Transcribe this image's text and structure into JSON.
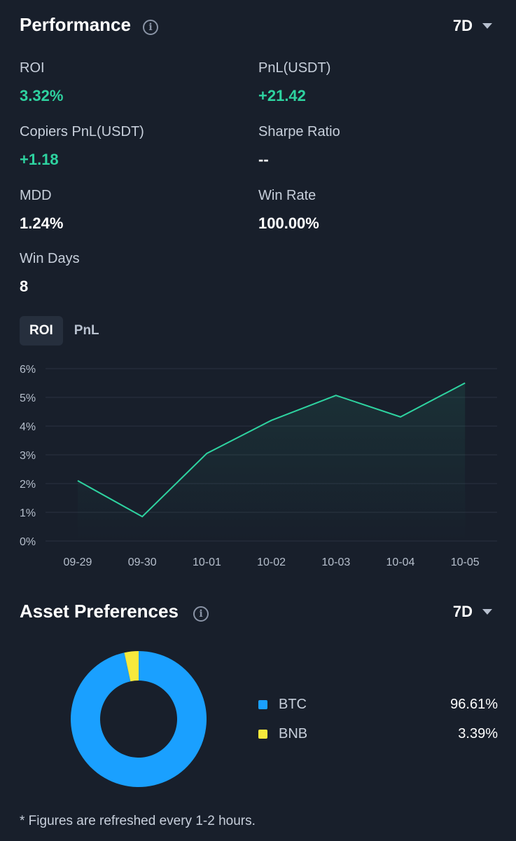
{
  "performance": {
    "title": "Performance",
    "period": "7D",
    "metrics": [
      {
        "label": "ROI",
        "value": "3.32%",
        "tone": "green"
      },
      {
        "label": "PnL(USDT)",
        "value": "+21.42",
        "tone": "green"
      },
      {
        "label": "Copiers PnL(USDT)",
        "value": "+1.18",
        "tone": "green"
      },
      {
        "label": "Sharpe Ratio",
        "value": "--",
        "tone": "white"
      },
      {
        "label": "MDD",
        "value": "1.24%",
        "tone": "white"
      },
      {
        "label": "Win Rate",
        "value": "100.00%",
        "tone": "white"
      },
      {
        "label": "Win Days",
        "value": "8",
        "tone": "white"
      }
    ],
    "tabs": [
      {
        "label": "ROI",
        "active": true
      },
      {
        "label": "PnL",
        "active": false
      }
    ]
  },
  "chart_data": {
    "type": "area",
    "x": [
      "09-29",
      "09-30",
      "10-01",
      "10-02",
      "10-03",
      "10-04",
      "10-05"
    ],
    "series": [
      {
        "values": [
          2.1,
          0.85,
          3.05,
          4.2,
          5.07,
          4.32,
          5.5
        ]
      }
    ],
    "yticks": [
      "0%",
      "1%",
      "2%",
      "3%",
      "4%",
      "5%",
      "6%"
    ],
    "ylim": [
      0,
      6
    ],
    "grid": true,
    "line_color": "#2ed3a0"
  },
  "assets": {
    "title": "Asset Preferences",
    "period": "7D",
    "items": [
      {
        "name": "BTC",
        "percent": "96.61%",
        "value": 96.61,
        "color": "#1aa0ff"
      },
      {
        "name": "BNB",
        "percent": "3.39%",
        "value": 3.39,
        "color": "#f7e93c"
      }
    ]
  },
  "footnote": "* Figures are refreshed every 1-2 hours."
}
